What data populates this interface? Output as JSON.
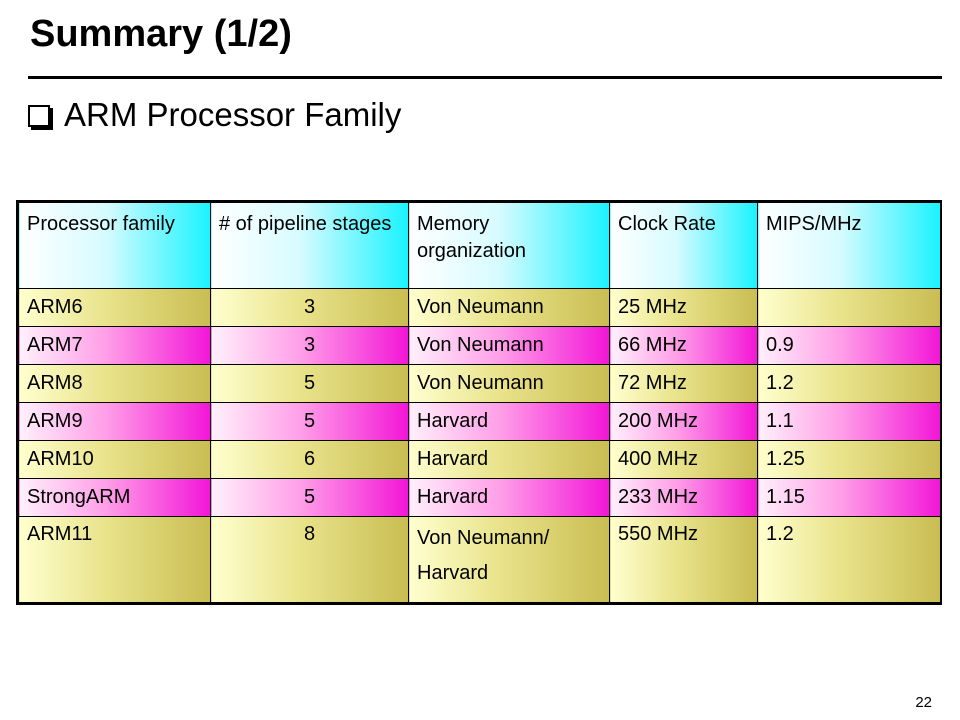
{
  "slide": {
    "title": "Summary (1/2)",
    "bullet": "ARM Processor Family",
    "page_number": "22"
  },
  "table": {
    "headers": [
      "Processor family",
      "# of pipeline stages",
      "Memory organization",
      "Clock Rate",
      "MIPS/MHz"
    ],
    "rows": [
      {
        "family": "ARM6",
        "stages": "3",
        "memory": "Von Neumann",
        "memory_line2": "",
        "clock": "25 MHz",
        "mips": ""
      },
      {
        "family": "ARM7",
        "stages": "3",
        "memory": "Von Neumann",
        "memory_line2": "",
        "clock": "66 MHz",
        "mips": "0.9"
      },
      {
        "family": "ARM8",
        "stages": "5",
        "memory": "Von Neumann",
        "memory_line2": "",
        "clock": "72 MHz",
        "mips": "1.2"
      },
      {
        "family": "ARM9",
        "stages": "5",
        "memory": "Harvard",
        "memory_line2": "",
        "clock": "200 MHz",
        "mips": "1.1"
      },
      {
        "family": "ARM10",
        "stages": "6",
        "memory": "Harvard",
        "memory_line2": "",
        "clock": "400 MHz",
        "mips": "1.25"
      },
      {
        "family": "StrongARM",
        "stages": "5",
        "memory": "Harvard",
        "memory_line2": "",
        "clock": "233 MHz",
        "mips": "1.15"
      },
      {
        "family": "ARM11",
        "stages": "8",
        "memory": "Von Neumann/",
        "memory_line2": "Harvard",
        "clock": "550 MHz",
        "mips": "1.2"
      }
    ]
  },
  "colors": {
    "header_accent": "#19f3ff",
    "olive_row": "#c9bd52",
    "pink_row": "#f216d7"
  }
}
